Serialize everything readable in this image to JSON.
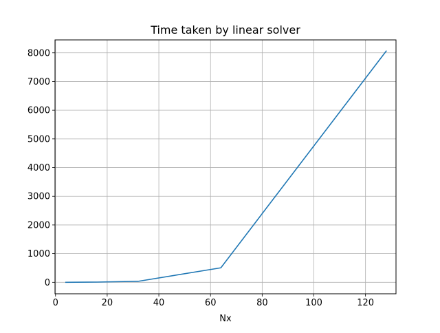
{
  "chart_data": {
    "type": "line",
    "title": "Time taken by linear solver",
    "xlabel": "Nx",
    "ylabel": "",
    "xlim": [
      -0.2,
      131.8
    ],
    "ylim": [
      -400,
      8450
    ],
    "xticks": [
      0,
      20,
      40,
      60,
      80,
      100,
      120
    ],
    "yticks": [
      0,
      1000,
      2000,
      3000,
      4000,
      5000,
      6000,
      7000,
      8000
    ],
    "grid": true,
    "legend": "none",
    "series": [
      {
        "x": [
          4,
          8,
          16,
          32,
          64,
          128
        ],
        "y": [
          1,
          3,
          8,
          35,
          505,
          8060
        ],
        "color": "#1f77b4"
      }
    ]
  }
}
